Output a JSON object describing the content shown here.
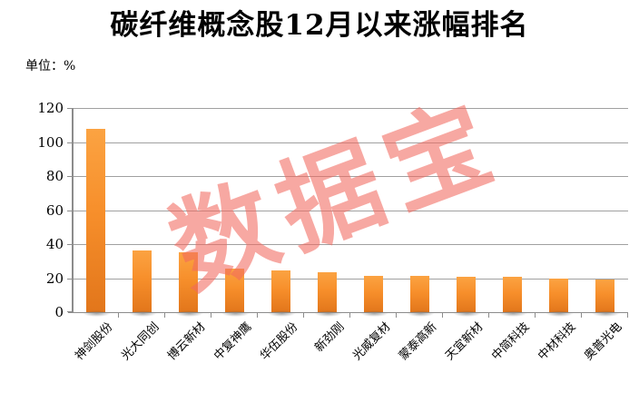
{
  "page": {
    "background": "#ffffff"
  },
  "chart_data": {
    "type": "bar",
    "title": "碳纤维概念股12月以来涨幅排名",
    "unit_label": "单位：%",
    "watermark": "数据宝",
    "categories": [
      "神剑股份",
      "光大同创",
      "博云新材",
      "中复神鹰",
      "华伍股份",
      "新劲刚",
      "光威复材",
      "蒙泰高新",
      "天宜新材",
      "中简科技",
      "中材科技",
      "奥普光电"
    ],
    "values": [
      107.9,
      36.1,
      35.2,
      25.5,
      24.6,
      23.3,
      21.5,
      21.3,
      20.8,
      20.7,
      19.8,
      19.1
    ],
    "xlabel": "",
    "ylabel": "",
    "ylim": [
      0,
      120
    ],
    "yticks": [
      0,
      20,
      40,
      60,
      80,
      100,
      120
    ],
    "grid": true,
    "legend_position": "none",
    "colors": {
      "bar_top": "#fba342",
      "bar_mid": "#f78f2b",
      "bar_bottom": "#e2761b",
      "gridline": "#a0a0a0",
      "axis": "#8c8c8c",
      "watermark": "#f2695f",
      "watermark_opacity": "0.58",
      "text": "#000000"
    }
  }
}
